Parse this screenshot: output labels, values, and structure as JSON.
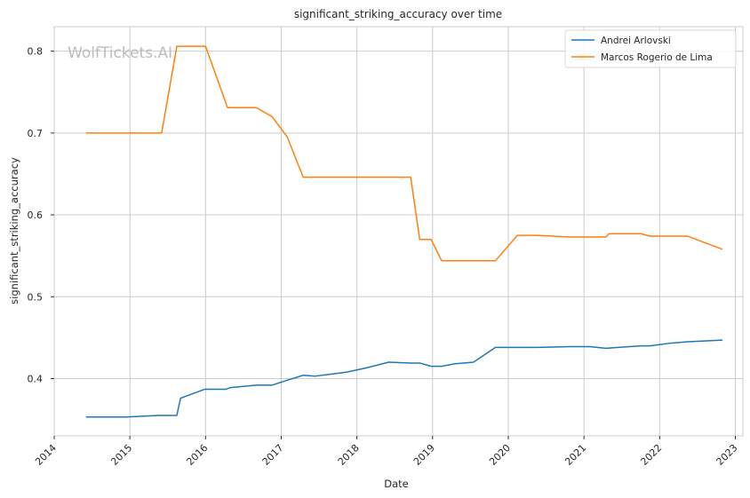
{
  "chart_data": {
    "type": "line",
    "title": "significant_striking_accuracy over time",
    "xlabel": "Date",
    "ylabel": "significant_striking_accuracy",
    "watermark": "WolfTickets.AI",
    "xlim": [
      2014.0,
      2023.1
    ],
    "ylim": [
      0.33,
      0.83
    ],
    "x_ticks": [
      2014,
      2015,
      2016,
      2017,
      2018,
      2019,
      2020,
      2021,
      2022,
      2023
    ],
    "x_tick_labels": [
      "2014",
      "2015",
      "2016",
      "2017",
      "2018",
      "2019",
      "2020",
      "2021",
      "2022",
      "2023"
    ],
    "y_ticks": [
      0.4,
      0.5,
      0.6,
      0.7,
      0.8
    ],
    "y_tick_labels": [
      "0.4",
      "0.5",
      "0.6",
      "0.7",
      "0.8"
    ],
    "grid": true,
    "legend_position": "top-right",
    "series": [
      {
        "name": "Andrei Arlovski",
        "color": "#1f77b4",
        "points": [
          [
            2014.42,
            0.353
          ],
          [
            2014.95,
            0.353
          ],
          [
            2015.38,
            0.355
          ],
          [
            2015.62,
            0.355
          ],
          [
            2015.67,
            0.376
          ],
          [
            2015.99,
            0.387
          ],
          [
            2016.27,
            0.387
          ],
          [
            2016.33,
            0.389
          ],
          [
            2016.67,
            0.392
          ],
          [
            2016.88,
            0.392
          ],
          [
            2017.08,
            0.398
          ],
          [
            2017.29,
            0.404
          ],
          [
            2017.45,
            0.403
          ],
          [
            2017.62,
            0.405
          ],
          [
            2017.87,
            0.408
          ],
          [
            2018.12,
            0.413
          ],
          [
            2018.42,
            0.42
          ],
          [
            2018.71,
            0.419
          ],
          [
            2018.83,
            0.419
          ],
          [
            2018.98,
            0.415
          ],
          [
            2019.12,
            0.415
          ],
          [
            2019.29,
            0.418
          ],
          [
            2019.54,
            0.42
          ],
          [
            2019.83,
            0.438
          ],
          [
            2020.38,
            0.438
          ],
          [
            2020.79,
            0.439
          ],
          [
            2021.08,
            0.439
          ],
          [
            2021.29,
            0.437
          ],
          [
            2021.45,
            0.438
          ],
          [
            2021.75,
            0.44
          ],
          [
            2021.87,
            0.44
          ],
          [
            2022.12,
            0.443
          ],
          [
            2022.37,
            0.445
          ],
          [
            2022.83,
            0.447
          ]
        ]
      },
      {
        "name": "Marcos Rogerio de Lima",
        "color": "#ff7f0e",
        "points": [
          [
            2014.42,
            0.7
          ],
          [
            2015.42,
            0.7
          ],
          [
            2015.62,
            0.806
          ],
          [
            2016.0,
            0.806
          ],
          [
            2016.29,
            0.731
          ],
          [
            2016.67,
            0.731
          ],
          [
            2016.88,
            0.72
          ],
          [
            2017.08,
            0.695
          ],
          [
            2017.29,
            0.646
          ],
          [
            2018.71,
            0.646
          ],
          [
            2018.83,
            0.57
          ],
          [
            2018.98,
            0.57
          ],
          [
            2019.12,
            0.544
          ],
          [
            2019.83,
            0.544
          ],
          [
            2020.12,
            0.575
          ],
          [
            2020.38,
            0.575
          ],
          [
            2020.79,
            0.573
          ],
          [
            2021.04,
            0.573
          ],
          [
            2021.29,
            0.573
          ],
          [
            2021.33,
            0.577
          ],
          [
            2021.75,
            0.577
          ],
          [
            2021.87,
            0.574
          ],
          [
            2022.37,
            0.574
          ],
          [
            2022.83,
            0.558
          ]
        ]
      }
    ]
  }
}
